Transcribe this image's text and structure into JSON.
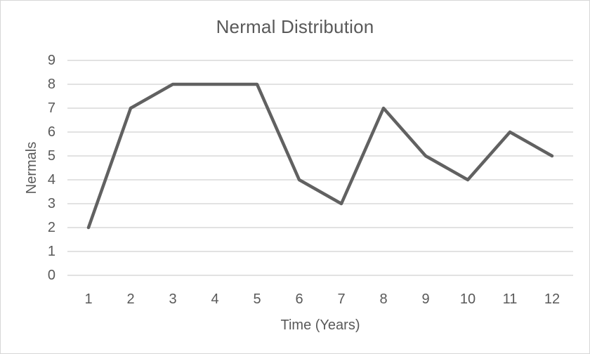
{
  "chart_data": {
    "type": "line",
    "title": "Nermal Distribution",
    "xlabel": "Time (Years)",
    "ylabel": "Nermals",
    "categories": [
      "1",
      "2",
      "3",
      "4",
      "5",
      "6",
      "7",
      "8",
      "9",
      "10",
      "11",
      "12"
    ],
    "values": [
      2,
      7,
      8,
      8,
      8,
      4,
      3,
      7,
      5,
      4,
      6,
      5
    ],
    "ylim": [
      0,
      9
    ],
    "y_ticks": [
      0,
      1,
      2,
      3,
      4,
      5,
      6,
      7,
      8,
      9
    ],
    "grid": true,
    "legend_position": "none",
    "colors": {
      "line": "#616161",
      "gridline": "#d9d9d9",
      "text": "#595959",
      "frame_border": "#d7d7d7",
      "background": "#ffffff"
    }
  }
}
